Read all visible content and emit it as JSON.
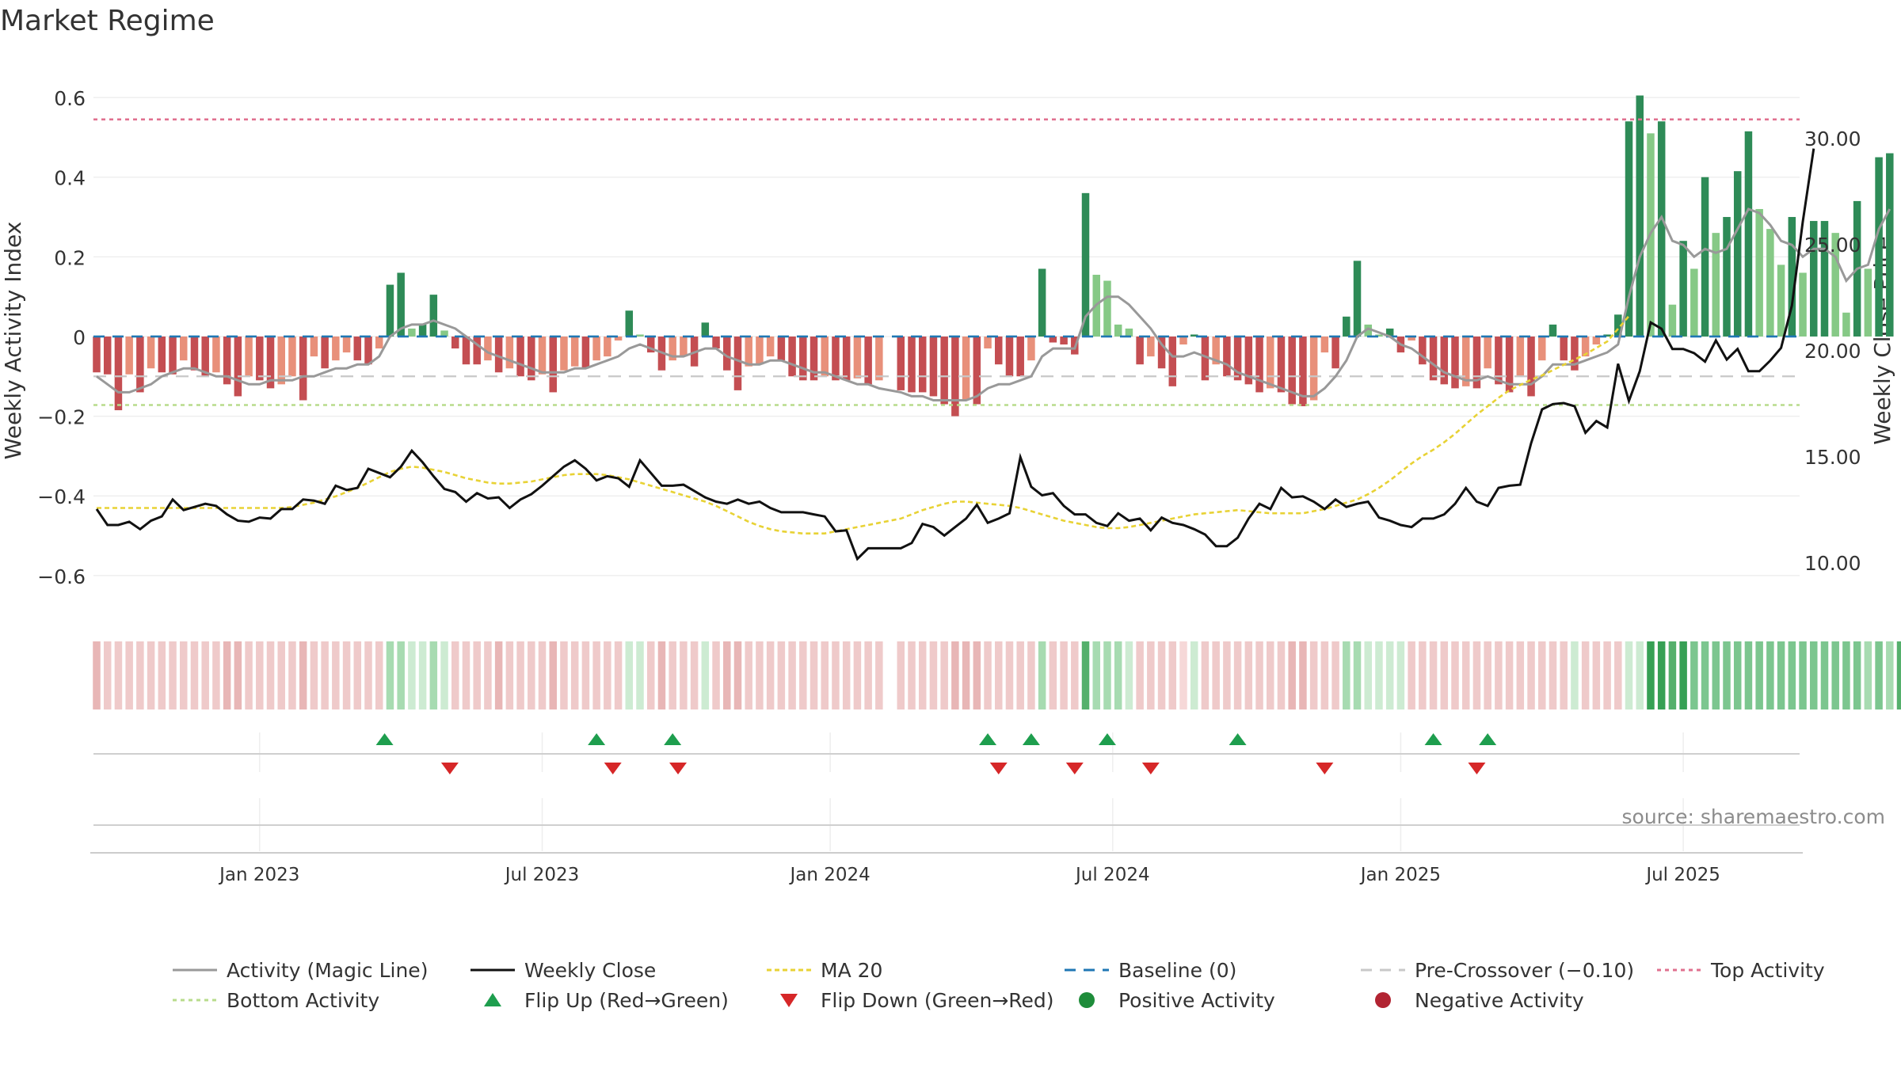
{
  "chart_data": {
    "type": "bar",
    "title": "Market Regime",
    "ylabel_left": "Weekly Activity Index",
    "ylabel_right": "Weekly Close Price",
    "ylim_left": [
      -0.65,
      0.63
    ],
    "ylim_right": [
      8.5,
      31.5
    ],
    "left_ticks": [
      0.6,
      0.4,
      0.2,
      0,
      -0.2,
      -0.4,
      -0.6
    ],
    "left_tick_labels": [
      "0.6",
      "0.4",
      "0.2",
      "0",
      "−0.2",
      "−0.4",
      "−0.6"
    ],
    "right_ticks": [
      30,
      25,
      20,
      15,
      10
    ],
    "right_tick_labels": [
      "30.00",
      "25.00",
      "20.00",
      "15.00",
      "10.00"
    ],
    "x_ticks": [
      "Jan 2023",
      "Jul 2023",
      "Jan 2024",
      "Jul 2024",
      "Jan 2025",
      "Jul 2025"
    ],
    "x_tick_weeks": [
      15,
      41,
      67.5,
      93.5,
      120,
      146
    ],
    "weeks": 159,
    "gap_week": 73,
    "reference_lines": {
      "baseline": 0,
      "pre_crossover": -0.1,
      "top_activity": 0.545,
      "bottom_activity": -0.172
    },
    "activity_bars": [
      -0.09,
      -0.095,
      -0.185,
      -0.095,
      -0.14,
      -0.08,
      -0.09,
      -0.095,
      -0.06,
      -0.085,
      -0.1,
      -0.09,
      -0.12,
      -0.15,
      -0.1,
      -0.11,
      -0.13,
      -0.12,
      -0.1,
      -0.16,
      -0.05,
      -0.08,
      -0.06,
      -0.04,
      -0.06,
      -0.07,
      -0.03,
      0.13,
      0.16,
      0.02,
      0.03,
      0.105,
      0.015,
      -0.03,
      -0.07,
      -0.07,
      -0.06,
      -0.09,
      -0.08,
      -0.1,
      -0.11,
      -0.095,
      -0.14,
      -0.085,
      -0.075,
      -0.08,
      -0.06,
      -0.05,
      -0.01,
      0.065,
      0.005,
      -0.04,
      -0.085,
      -0.06,
      -0.05,
      -0.075,
      0.035,
      -0.03,
      -0.085,
      -0.135,
      -0.075,
      -0.07,
      -0.05,
      -0.06,
      -0.1,
      -0.11,
      -0.11,
      -0.1,
      -0.11,
      -0.11,
      -0.105,
      -0.12,
      -0.11,
      -0.135,
      -0.14,
      -0.14,
      -0.15,
      -0.17,
      -0.2,
      -0.16,
      -0.17,
      -0.03,
      -0.07,
      -0.1,
      -0.1,
      -0.06,
      0.17,
      -0.015,
      -0.02,
      -0.045,
      0.36,
      0.155,
      0.14,
      0.03,
      0.02,
      -0.07,
      -0.05,
      -0.08,
      -0.125,
      -0.02,
      0.005,
      -0.11,
      -0.07,
      -0.1,
      -0.11,
      -0.12,
      -0.14,
      -0.13,
      -0.14,
      -0.17,
      -0.175,
      -0.16,
      -0.04,
      -0.08,
      0.05,
      0.19,
      0.03,
      0.005,
      0.02,
      -0.04,
      -0.01,
      -0.07,
      -0.11,
      -0.12,
      -0.13,
      -0.125,
      -0.13,
      -0.08,
      -0.12,
      -0.14,
      -0.1,
      -0.15,
      -0.06,
      0.03,
      -0.06,
      -0.085,
      -0.05,
      -0.02,
      0.005,
      0.055,
      0.54,
      0.605,
      0.51,
      0.54,
      0.08,
      0.24,
      0.17,
      0.4,
      0.26,
      0.3,
      0.415,
      0.515,
      0.32,
      0.27,
      0.18,
      0.3,
      0.16,
      0.29,
      0.29,
      0.26,
      0.06,
      0.34,
      0.17,
      0.45,
      0.46
    ],
    "magic_line": [
      -0.1,
      -0.12,
      -0.14,
      -0.14,
      -0.13,
      -0.12,
      -0.1,
      -0.09,
      -0.08,
      -0.08,
      -0.09,
      -0.1,
      -0.1,
      -0.11,
      -0.12,
      -0.12,
      -0.11,
      -0.11,
      -0.11,
      -0.1,
      -0.1,
      -0.09,
      -0.08,
      -0.08,
      -0.07,
      -0.07,
      -0.05,
      0.0,
      0.02,
      0.03,
      0.03,
      0.04,
      0.03,
      0.02,
      0.0,
      -0.02,
      -0.04,
      -0.05,
      -0.06,
      -0.07,
      -0.08,
      -0.09,
      -0.09,
      -0.09,
      -0.08,
      -0.08,
      -0.07,
      -0.06,
      -0.05,
      -0.03,
      -0.02,
      -0.03,
      -0.04,
      -0.05,
      -0.05,
      -0.04,
      -0.03,
      -0.03,
      -0.05,
      -0.06,
      -0.07,
      -0.07,
      -0.06,
      -0.06,
      -0.07,
      -0.08,
      -0.09,
      -0.09,
      -0.1,
      -0.11,
      -0.12,
      -0.12,
      -0.13,
      -0.14,
      -0.15,
      -0.15,
      -0.16,
      -0.16,
      -0.16,
      -0.16,
      -0.15,
      -0.13,
      -0.12,
      -0.12,
      -0.11,
      -0.1,
      -0.05,
      -0.03,
      -0.03,
      -0.03,
      0.05,
      0.08,
      0.1,
      0.1,
      0.08,
      0.05,
      0.02,
      -0.02,
      -0.05,
      -0.05,
      -0.04,
      -0.05,
      -0.06,
      -0.07,
      -0.09,
      -0.1,
      -0.11,
      -0.12,
      -0.13,
      -0.14,
      -0.15,
      -0.15,
      -0.13,
      -0.1,
      -0.06,
      0.0,
      0.02,
      0.01,
      0.0,
      -0.02,
      -0.03,
      -0.05,
      -0.07,
      -0.09,
      -0.1,
      -0.11,
      -0.11,
      -0.1,
      -0.11,
      -0.12,
      -0.12,
      -0.12,
      -0.1,
      -0.07,
      -0.07,
      -0.07,
      -0.06,
      -0.05,
      -0.04,
      -0.02,
      0.1,
      0.2,
      0.26,
      0.3,
      0.24,
      0.23,
      0.2,
      0.22,
      0.21,
      0.22,
      0.27,
      0.32,
      0.31,
      0.28,
      0.24,
      0.23,
      0.2,
      0.22,
      0.22,
      0.2,
      0.14,
      0.17,
      0.18,
      0.27,
      0.32
    ],
    "weekly_close": [
      12.5,
      11.75,
      11.75,
      11.9,
      11.55,
      11.95,
      12.15,
      12.95,
      12.45,
      12.6,
      12.75,
      12.65,
      12.25,
      11.95,
      11.9,
      12.1,
      12.05,
      12.5,
      12.5,
      12.95,
      12.9,
      12.75,
      13.6,
      13.4,
      13.5,
      14.4,
      14.2,
      14.0,
      14.5,
      15.25,
      14.7,
      14.05,
      13.45,
      13.3,
      12.85,
      13.25,
      13.0,
      13.05,
      12.55,
      12.95,
      13.2,
      13.6,
      14.05,
      14.5,
      14.8,
      14.4,
      13.85,
      14.05,
      13.95,
      13.55,
      14.8,
      14.2,
      13.6,
      13.6,
      13.65,
      13.35,
      13.05,
      12.85,
      12.75,
      12.95,
      12.75,
      12.85,
      12.55,
      12.35,
      12.35,
      12.35,
      12.25,
      12.15,
      11.45,
      11.5,
      10.15,
      10.65,
      10.65,
      10.65,
      10.9,
      11.8,
      11.65,
      11.25,
      11.65,
      12.05,
      12.7,
      11.85,
      12.05,
      12.3,
      14.95,
      13.55,
      13.15,
      13.25,
      12.65,
      12.25,
      12.25,
      11.85,
      11.7,
      12.3,
      11.95,
      12.05,
      11.5,
      12.1,
      11.85,
      11.75,
      11.55,
      11.3,
      10.75,
      10.75,
      11.15,
      12.05,
      12.75,
      12.5,
      13.5,
      13.05,
      13.1,
      12.85,
      12.5,
      12.95,
      12.6,
      12.75,
      12.85,
      12.1,
      11.95,
      11.75,
      11.65,
      12.05,
      12.05,
      12.25,
      12.75,
      13.5,
      12.85,
      12.65,
      13.5,
      13.6,
      13.65,
      15.6,
      17.2,
      17.45,
      17.5,
      17.35,
      16.1,
      16.65,
      16.35,
      19.35,
      17.6,
      19.0,
      21.3,
      21.0,
      20.05,
      20.05,
      19.85,
      19.45,
      20.45,
      19.55,
      20.05,
      19.0,
      19.0,
      19.5,
      20.1,
      22.1,
      26.05,
      29.5
    ],
    "ma20": [
      12.55,
      12.55,
      12.55,
      12.55,
      12.55,
      12.55,
      12.55,
      12.55,
      12.55,
      12.55,
      12.55,
      12.55,
      12.55,
      12.55,
      12.55,
      12.55,
      12.55,
      12.55,
      12.6,
      12.7,
      12.8,
      12.95,
      13.1,
      13.3,
      13.5,
      13.75,
      14.0,
      14.25,
      14.4,
      14.5,
      14.45,
      14.35,
      14.25,
      14.1,
      13.95,
      13.85,
      13.75,
      13.7,
      13.7,
      13.75,
      13.8,
      13.9,
      14.0,
      14.1,
      14.15,
      14.15,
      14.15,
      14.1,
      14.0,
      13.9,
      13.75,
      13.6,
      13.45,
      13.3,
      13.15,
      13.0,
      12.85,
      12.65,
      12.4,
      12.15,
      11.9,
      11.7,
      11.55,
      11.45,
      11.4,
      11.35,
      11.35,
      11.35,
      11.45,
      11.55,
      11.65,
      11.75,
      11.85,
      12.05,
      12.25,
      12.45,
      12.6,
      12.75,
      12.85,
      12.85,
      12.8,
      12.75,
      12.7,
      12.65,
      12.55,
      12.4,
      12.25,
      12.1,
      11.95,
      11.85,
      11.75,
      11.65,
      11.6,
      11.6,
      11.65,
      11.75,
      11.85,
      11.95,
      12.05,
      12.15,
      12.25,
      12.3,
      12.35,
      12.4,
      12.45,
      12.4,
      12.35,
      12.3,
      12.3,
      12.3,
      12.3,
      12.4,
      12.5,
      12.65,
      12.8,
      12.95,
      13.2,
      13.5,
      13.85,
      14.25,
      14.65,
      15.0,
      15.3,
      15.65,
      16.05,
      16.5,
      16.95,
      17.35,
      17.75,
      18.1,
      18.35,
      18.6,
      18.8,
      19.05,
      19.3,
      19.55,
      19.8,
      20.1,
      20.4,
      21.0,
      21.6
    ],
    "state_strip": [
      "r2",
      "r1",
      "r1",
      "r1",
      "r1",
      "r1",
      "r1",
      "r1",
      "r1",
      "r1",
      "r1",
      "r1",
      "r2",
      "r2",
      "r1",
      "r1",
      "r1",
      "r1",
      "r1",
      "r2",
      "r1",
      "r1",
      "r1",
      "r1",
      "r1",
      "r1",
      "r1",
      "g1",
      "g1",
      "g0",
      "g0",
      "g1",
      "g0",
      "r1",
      "r1",
      "r1",
      "r1",
      "r2",
      "r1",
      "r1",
      "r1",
      "r1",
      "r2",
      "r1",
      "r1",
      "r1",
      "r1",
      "r1",
      "r1",
      "g0",
      "g0",
      "r1",
      "r2",
      "r1",
      "r1",
      "r1",
      "g0",
      "r1",
      "r2",
      "r2",
      "r1",
      "r1",
      "r1",
      "r1",
      "r1",
      "r1",
      "r1",
      "r1",
      "r1",
      "r1",
      "r1",
      "r1",
      "r1",
      "r1",
      "r1",
      "r1",
      "r1",
      "r1",
      "r2",
      "r2",
      "r2",
      "r1",
      "r1",
      "r1",
      "r1",
      "r1",
      "g1",
      "r1",
      "r1",
      "r1",
      "g3",
      "g1",
      "g1",
      "g1",
      "g0",
      "r1",
      "r1",
      "r1",
      "r1",
      "r0",
      "g0",
      "r1",
      "r1",
      "r1",
      "r1",
      "r1",
      "r1",
      "r1",
      "r1",
      "r2",
      "r2",
      "r1",
      "r1",
      "r1",
      "g1",
      "g1",
      "g0",
      "g0",
      "g0",
      "g0",
      "r1",
      "r1",
      "r1",
      "r1",
      "r1",
      "r1",
      "r1",
      "r1",
      "r1",
      "r1",
      "r1",
      "r1",
      "r1",
      "r1",
      "r1",
      "g0",
      "r1",
      "r1",
      "r1",
      "r1",
      "g0",
      "g0",
      "g4",
      "g4",
      "g3",
      "g4",
      "g2",
      "g2",
      "g2",
      "g2",
      "g2",
      "g2",
      "g2",
      "g2",
      "g2",
      "g2",
      "g2",
      "g2",
      "g2",
      "g2",
      "g2",
      "g2",
      "g1",
      "g2",
      "g1",
      "g3",
      "g2"
    ],
    "flip_up_weeks": [
      26.5,
      46,
      53,
      82,
      86,
      93,
      105,
      123,
      128
    ],
    "flip_down_weeks": [
      32.5,
      47.5,
      53.5,
      83,
      90,
      97,
      113,
      127
    ],
    "colors": {
      "bar_red_dark": "#c44e52",
      "bar_red_light": "#e8907a",
      "bar_green_dark": "#2e8b57",
      "bar_green_light": "#86c986",
      "magic_line": "#999999",
      "close": "#111111",
      "ma20": "#e8d235",
      "baseline": "#1f77b4",
      "pre_crossover": "#c8c8c8",
      "top_activity": "#e0708f",
      "bottom_activity": "#b8dc8c",
      "flip_up": "#1e9e4e",
      "flip_down": "#d62728",
      "positive": "#1e8c3a",
      "negative": "#b22432"
    },
    "source": "source: sharemaestro.com",
    "legend": [
      {
        "key": "activity",
        "label": "Activity (Magic Line)"
      },
      {
        "key": "close",
        "label": "Weekly Close"
      },
      {
        "key": "ma20",
        "label": "MA 20"
      },
      {
        "key": "baseline",
        "label": "Baseline (0)"
      },
      {
        "key": "pre",
        "label": "Pre-Crossover (−0.10)"
      },
      {
        "key": "top",
        "label": "Top Activity"
      },
      {
        "key": "bottom",
        "label": "Bottom Activity"
      },
      {
        "key": "flipup",
        "label": "Flip Up (Red→Green)"
      },
      {
        "key": "flipdown",
        "label": "Flip Down (Green→Red)"
      },
      {
        "key": "pos",
        "label": "Positive Activity"
      },
      {
        "key": "neg",
        "label": "Negative Activity"
      }
    ],
    "legend_position": "bottom"
  }
}
